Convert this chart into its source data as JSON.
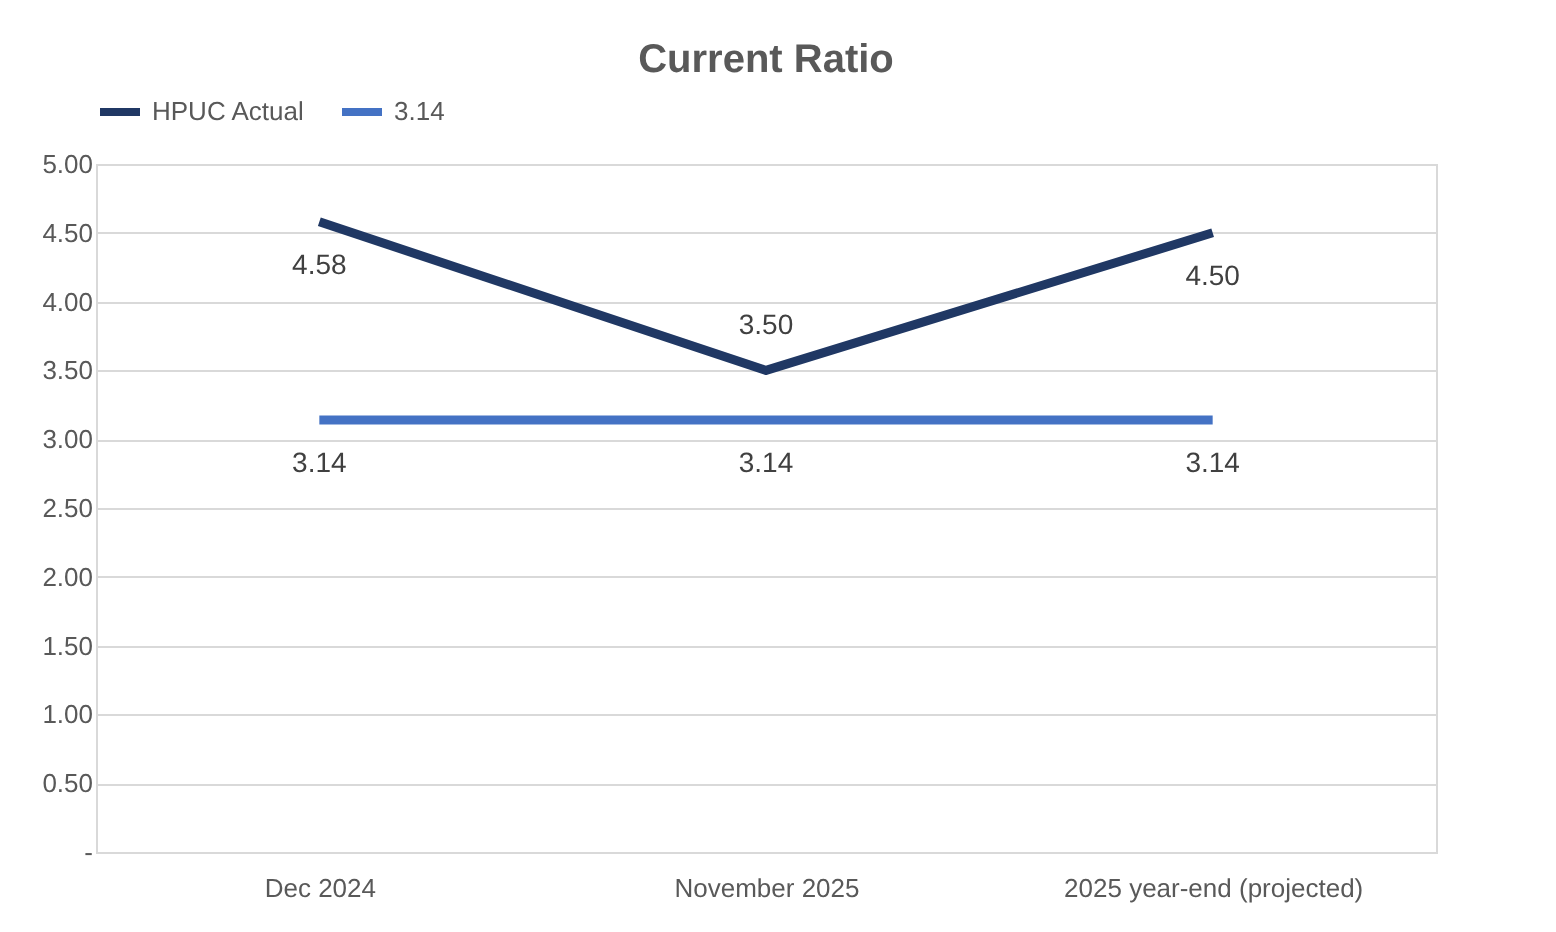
{
  "chart_data": {
    "type": "line",
    "title": "Current Ratio",
    "categories": [
      "Dec 2024",
      "November 2025",
      "2025 year-end (projected)"
    ],
    "series": [
      {
        "name": "HPUC Actual",
        "color": "#203864",
        "values": [
          4.58,
          3.5,
          4.5
        ],
        "value_labels": [
          "4.58",
          "3.50",
          "4.50"
        ]
      },
      {
        "name": "3.14",
        "color": "#4472c4",
        "values": [
          3.14,
          3.14,
          3.14
        ],
        "value_labels": [
          "3.14",
          "3.14",
          "3.14"
        ]
      }
    ],
    "ylim": [
      0,
      5
    ],
    "yticks": [
      {
        "value": 0,
        "label": "-"
      },
      {
        "value": 0.5,
        "label": "0.50"
      },
      {
        "value": 1,
        "label": "1.00"
      },
      {
        "value": 1.5,
        "label": "1.50"
      },
      {
        "value": 2,
        "label": "2.00"
      },
      {
        "value": 2.5,
        "label": "2.50"
      },
      {
        "value": 3,
        "label": "3.00"
      },
      {
        "value": 3.5,
        "label": "3.50"
      },
      {
        "value": 4,
        "label": "4.00"
      },
      {
        "value": 4.5,
        "label": "4.50"
      },
      {
        "value": 5,
        "label": "5.00"
      }
    ],
    "grid": "y",
    "legend": "top",
    "marker": "none",
    "line_style": "solid"
  }
}
